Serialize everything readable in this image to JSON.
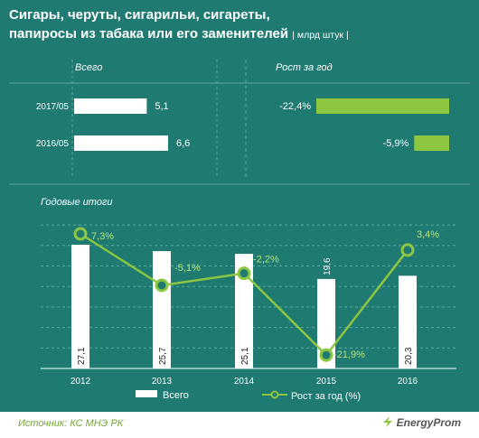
{
  "header": {
    "title_line1": "Сигары, черуты, сигарильи, сигареты,",
    "title_line2": "папиросы из табака или его заменителей",
    "unit": "| млрд штук |"
  },
  "footer": {
    "source": "Источник: КС МНЭ РК",
    "brand": "EnergyProm"
  },
  "colors": {
    "background": "#1f7b72",
    "bar": "#ffffff",
    "growth_bar": "#8dc641",
    "line": "#8dc641",
    "line_labels": "#b7e27a"
  },
  "chart_data": [
    {
      "type": "bar",
      "panel_title": "Всего",
      "orientation": "horizontal",
      "categories": [
        "2017/05",
        "2016/05"
      ],
      "values": [
        5.1,
        6.6
      ],
      "value_labels": [
        "5,1",
        "6,6"
      ]
    },
    {
      "type": "bar",
      "panel_title": "Рост за год",
      "orientation": "horizontal",
      "unit": "%",
      "categories": [
        "2017/05",
        "2016/05"
      ],
      "values": [
        -22.4,
        -5.9
      ],
      "value_labels": [
        "-22,4%",
        "-5,9%"
      ]
    },
    {
      "type": "bar+line",
      "panel_title": "Годовые итоги",
      "categories": [
        "2012",
        "2013",
        "2014",
        "2015",
        "2016"
      ],
      "series": [
        {
          "name": "Всего",
          "kind": "bar",
          "values": [
            27.1,
            25.7,
            25.1,
            19.6,
            20.3
          ],
          "value_labels": [
            "27,1",
            "25,7",
            "25,1",
            "19,6",
            "20,3"
          ]
        },
        {
          "name": "Рост за год (%)",
          "kind": "line",
          "values": [
            7.3,
            -5.1,
            -2.2,
            -21.9,
            3.4
          ],
          "value_labels": [
            "7,3%",
            "-5,1%",
            "-2,2%",
            "-21,9%",
            "3,4%"
          ]
        }
      ],
      "grid": true,
      "legend_position": "bottom"
    }
  ]
}
